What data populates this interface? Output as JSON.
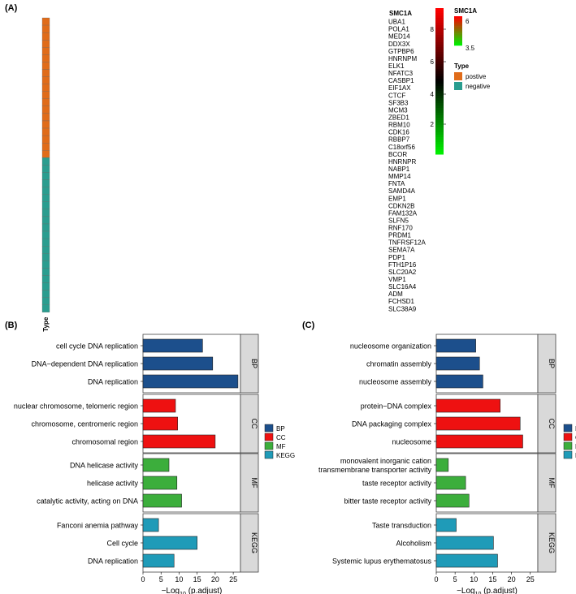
{
  "panel_labels": {
    "a": "(A)",
    "b": "(B)",
    "c": "(C)"
  },
  "colors": {
    "green": "#00ee00",
    "black": "#000000",
    "red": "#ff0000",
    "positive": "#e06c1a",
    "negative": "#2a9d8f",
    "BP": "#1c4f8c",
    "CC": "#ee1111",
    "MF": "#3cae3c",
    "KEGG": "#1f9bb8",
    "strip": "#d9d9d9"
  },
  "chart_data": [
    {
      "type": "heatmap",
      "title": "",
      "top_annotation": {
        "label": "SMC1A",
        "trend": "increasing",
        "n_samples": 58
      },
      "side_annotation": {
        "label": "Type"
      },
      "genes": [
        {
          "name": "UBA1",
          "type": "postive"
        },
        {
          "name": "POLA1",
          "type": "postive"
        },
        {
          "name": "MED14",
          "type": "postive"
        },
        {
          "name": "DDX3X",
          "type": "postive"
        },
        {
          "name": "GTPBP6",
          "type": "postive"
        },
        {
          "name": "HNRNPM",
          "type": "postive"
        },
        {
          "name": "ELK1",
          "type": "postive"
        },
        {
          "name": "NFATC3",
          "type": "postive"
        },
        {
          "name": "CASBP1",
          "type": "postive"
        },
        {
          "name": "EIF1AX",
          "type": "postive"
        },
        {
          "name": "CTCF",
          "type": "postive"
        },
        {
          "name": "SF3B3",
          "type": "postive"
        },
        {
          "name": "MCM3",
          "type": "postive"
        },
        {
          "name": "ZBED1",
          "type": "postive"
        },
        {
          "name": "RBM10",
          "type": "postive"
        },
        {
          "name": "CDK16",
          "type": "postive"
        },
        {
          "name": "RBBP7",
          "type": "postive"
        },
        {
          "name": "C18orf56",
          "type": "postive"
        },
        {
          "name": "BCOR",
          "type": "postive"
        },
        {
          "name": "HNRNPR",
          "type": "negative"
        },
        {
          "name": "NABP1",
          "type": "negative"
        },
        {
          "name": "MMP14",
          "type": "negative"
        },
        {
          "name": "FNTA",
          "type": "negative"
        },
        {
          "name": "SAMD4A",
          "type": "negative"
        },
        {
          "name": "EMP1",
          "type": "negative"
        },
        {
          "name": "CDKN2B",
          "type": "negative"
        },
        {
          "name": "FAM132A",
          "type": "negative"
        },
        {
          "name": "SLFN5",
          "type": "negative"
        },
        {
          "name": "RNF170",
          "type": "negative"
        },
        {
          "name": "PRDM1",
          "type": "negative"
        },
        {
          "name": "TNFRSF12A",
          "type": "negative"
        },
        {
          "name": "SEMA7A",
          "type": "negative"
        },
        {
          "name": "PDP1",
          "type": "negative"
        },
        {
          "name": "FTH1P16",
          "type": "negative"
        },
        {
          "name": "SLC20A2",
          "type": "negative"
        },
        {
          "name": "VMP1",
          "type": "negative"
        },
        {
          "name": "SLC16A4",
          "type": "negative"
        },
        {
          "name": "ADM",
          "type": "negative"
        },
        {
          "name": "FCHSD1",
          "type": "negative"
        },
        {
          "name": "SLC38A9",
          "type": "negative"
        }
      ],
      "colorbar": {
        "ticks": [
          "8",
          "6",
          "4",
          "2"
        ]
      },
      "legend": {
        "smc1a_title": "SMC1A",
        "smc1a_ticks": [
          "6",
          "3.5"
        ],
        "type_title": "Type",
        "type_entries": [
          "postive",
          "negative"
        ]
      }
    },
    {
      "type": "bar",
      "orientation": "horizontal",
      "xlabel_main": "−Log",
      "xlabel_sub": "10",
      "xlabel_rest": " (p.adjust)",
      "xlim": [
        0,
        27
      ],
      "xticks": [
        "0",
        "5",
        "10",
        "15",
        "20",
        "25"
      ],
      "legend": [
        "BP",
        "CC",
        "MF",
        "KEGG"
      ],
      "facets": [
        {
          "name": "BP",
          "bars": [
            {
              "label": "cell cycle DNA replication",
              "value": 16.5
            },
            {
              "label": "DNA−dependent DNA replication",
              "value": 19.3
            },
            {
              "label": "DNA replication",
              "value": 26.3
            }
          ]
        },
        {
          "name": "CC",
          "bars": [
            {
              "label": "nuclear chromosome, telomeric region",
              "value": 9.0
            },
            {
              "label": "chromosome, centromeric region",
              "value": 9.6
            },
            {
              "label": "chromosomal region",
              "value": 20.0
            }
          ]
        },
        {
          "name": "MF",
          "bars": [
            {
              "label": "DNA helicase activity",
              "value": 7.2
            },
            {
              "label": "helicase activity",
              "value": 9.4
            },
            {
              "label": "catalytic activity, acting on DNA",
              "value": 10.7
            }
          ]
        },
        {
          "name": "KEGG",
          "bars": [
            {
              "label": "Fanconi anemia pathway",
              "value": 4.3
            },
            {
              "label": "Cell cycle",
              "value": 15.0
            },
            {
              "label": "DNA replication",
              "value": 8.6
            }
          ]
        }
      ]
    },
    {
      "type": "bar",
      "orientation": "horizontal",
      "xlabel_main": "−Log",
      "xlabel_sub": "10",
      "xlabel_rest": " (p.adjust)",
      "xlim": [
        0,
        27
      ],
      "xticks": [
        "0",
        "5",
        "10",
        "15",
        "20",
        "25"
      ],
      "legend": [
        "BP",
        "CC",
        "MF",
        "KEGG"
      ],
      "facets": [
        {
          "name": "BP",
          "bars": [
            {
              "label": "nucleosome organization",
              "value": 10.5
            },
            {
              "label": "chromatin assembly",
              "value": 11.5
            },
            {
              "label": "nucleosome assembly",
              "value": 12.4
            }
          ]
        },
        {
          "name": "CC",
          "bars": [
            {
              "label": "protein−DNA complex",
              "value": 17.0
            },
            {
              "label": "DNA packaging complex",
              "value": 22.3
            },
            {
              "label": "nucleosome",
              "value": 23.0
            }
          ]
        },
        {
          "name": "MF",
          "bars": [
            {
              "label": "monovalent inorganic cation\ntransmembrane transporter activity",
              "value": 3.2
            },
            {
              "label": "taste receptor activity",
              "value": 7.8
            },
            {
              "label": "bitter taste receptor activity",
              "value": 8.7
            }
          ]
        },
        {
          "name": "KEGG",
          "bars": [
            {
              "label": "Taste transduction",
              "value": 5.3
            },
            {
              "label": "Alcoholism",
              "value": 15.2
            },
            {
              "label": "Systemic lupus erythematosus",
              "value": 16.3
            }
          ]
        }
      ]
    }
  ]
}
